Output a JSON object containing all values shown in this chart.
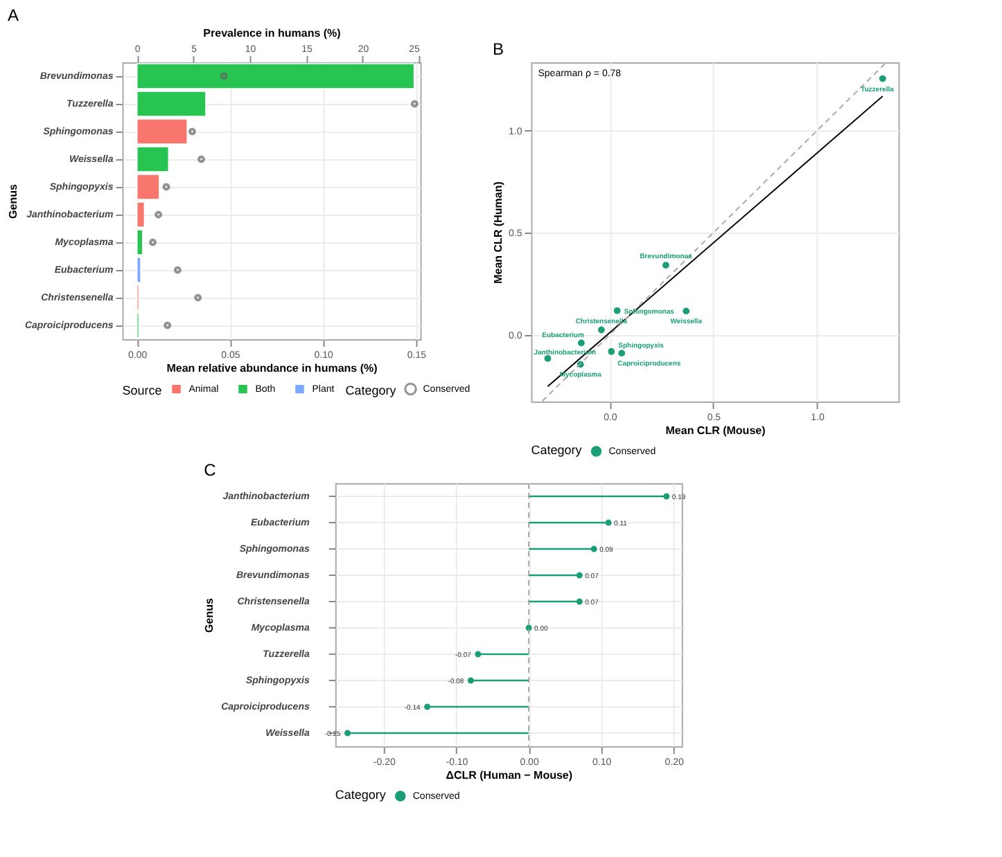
{
  "chart_data": [
    {
      "type": "bar",
      "title": "A",
      "orientation": "horizontal",
      "xlabel": "Mean relative abundance in humans (%)",
      "x2label": "Prevalence in humans (%)",
      "ylabel": "Genus",
      "legend_title": [
        "Category",
        "Source"
      ],
      "categories": [
        "Brevundimonas",
        "Tuzzerella",
        "Sphingomonas",
        "Weissella",
        "Sphingopyxis",
        "Janthinobacterium",
        "Mycoplasma",
        "Eubacterium",
        "Christensenella",
        "Caproiciproducens"
      ],
      "series": [
        {
          "name": "Animal",
          "color": "#f8766d",
          "values": [
            null,
            null,
            0.027,
            null,
            0.012,
            0.004,
            null,
            null,
            0.001,
            null
          ]
        },
        {
          "name": "Both",
          "color": "#28c452",
          "values": [
            0.149,
            0.037,
            null,
            0.017,
            null,
            null,
            0.003,
            null,
            null,
            0.001
          ]
        },
        {
          "name": "Plant",
          "color": "#7aa8ff",
          "values": [
            null,
            null,
            null,
            null,
            null,
            null,
            null,
            0.002,
            null,
            null
          ]
        },
        {
          "name": "Conserved",
          "type": "scatter",
          "axis": "x2",
          "marker": "circle",
          "color": "#666666",
          "values": [
            7.7,
            24.6,
            4.9,
            5.7,
            2.6,
            1.9,
            1.4,
            3.6,
            5.4,
            2.7
          ]
        }
      ],
      "xlim": [
        -0.0079,
        0.1523
      ],
      "xticks": [
        {
          "value": 0,
          "label": "0.00"
        },
        {
          "value": 0.05,
          "label": "0.05"
        },
        {
          "value": 0.1,
          "label": "0.10"
        },
        {
          "value": 0.15,
          "label": "0.15"
        }
      ],
      "x2lim": [
        -1.3,
        25.1
      ],
      "x2ticks": [
        0,
        5,
        10,
        15,
        20,
        25
      ],
      "grid": true,
      "legend": "bottom"
    },
    {
      "type": "scatter",
      "title": "B",
      "xlabel": "Mean CLR (Mouse)",
      "ylabel": "Mean CLR (Human)",
      "legend_title": "Category",
      "series": [
        {
          "name": "Conserved",
          "type": "scatter",
          "marker": "circle",
          "color": "#1b9e77",
          "x": [
            1.317,
            0.271,
            0.369,
            0.036,
            -0.04,
            -0.137,
            -0.299,
            -0.141,
            0.008,
            0.058
          ],
          "values": [
            1.255,
            0.341,
            0.116,
            0.118,
            0.024,
            -0.04,
            -0.116,
            -0.145,
            -0.082,
            -0.09
          ]
        },
        {
          "type": "line",
          "color": "#000000",
          "x": [
            -0.299,
            1.317
          ],
          "values": [
            -0.253,
            1.169
          ]
        },
        {
          "type": "line",
          "color": "#aaaaaa",
          "line_style": "dashed",
          "x": [
            -0.325,
            1.335
          ],
          "values": [
            -0.325,
            1.335
          ]
        }
      ],
      "annotations": [
        "Spearman ρ = 0.78",
        {
          "text": "Tuzzerella",
          "x": 1.317,
          "y": 1.255
        },
        {
          "text": "Brevundimonas",
          "x": 0.271,
          "y": 0.341
        },
        {
          "text": "Weissella",
          "x": 0.369,
          "y": 0.116
        },
        {
          "text": "Sphingomonas",
          "x": 0.036,
          "y": 0.118
        },
        {
          "text": "Christensenella",
          "x": -0.04,
          "y": 0.024
        },
        {
          "text": "Eubacterium",
          "x": -0.137,
          "y": -0.04
        },
        {
          "text": "Janthinobacterium",
          "x": -0.299,
          "y": -0.116
        },
        {
          "text": "Mycoplasma",
          "x": -0.141,
          "y": -0.145
        },
        {
          "text": "Sphingopyxis",
          "x": 0.008,
          "y": -0.082
        },
        {
          "text": "Caproiciproducens",
          "x": 0.058,
          "y": -0.09
        }
      ],
      "xlim": [
        -0.379,
        1.393
      ],
      "xticks": [
        {
          "value": 0,
          "label": "0.0"
        },
        {
          "value": 0.5,
          "label": "0.5"
        },
        {
          "value": 1,
          "label": "1.0"
        }
      ],
      "ylim": [
        -0.327,
        1.335
      ],
      "yticks": [
        {
          "value": 0,
          "label": "0.0"
        },
        {
          "value": 0.5,
          "label": "0.5"
        },
        {
          "value": 1,
          "label": "1.0"
        }
      ],
      "grid": true,
      "legend": "bottom"
    },
    {
      "type": "lollipop",
      "title": "C",
      "orientation": "horizontal",
      "xlabel": "ΔCLR (Human − Mouse)",
      "ylabel": "Genus",
      "legend_title": "Category",
      "categories": [
        "Janthinobacterium",
        "Eubacterium",
        "Sphingomonas",
        "Brevundimonas",
        "Christensenella",
        "Mycoplasma",
        "Tuzzerella",
        "Sphingopyxis",
        "Caproiciproducens",
        "Weissella"
      ],
      "series": [
        {
          "name": "Conserved",
          "color": "#1b9e77",
          "values": [
            0.19,
            0.11,
            0.09,
            0.07,
            0.07,
            0.0,
            -0.07,
            -0.08,
            -0.14,
            -0.25
          ],
          "value_labels": [
            "0.19",
            "0.11",
            "0.09",
            "0.07",
            "0.07",
            "0.00",
            "-0.07",
            "-0.08",
            "-0.14",
            "-0.25"
          ]
        }
      ],
      "ref_lines": [
        {
          "axis": "x",
          "value": 0,
          "color": "#999999",
          "line_style": "dashed"
        }
      ],
      "xlim": [
        -0.267,
        0.211
      ],
      "xticks": [
        {
          "value": -0.2,
          "label": "-0.20"
        },
        {
          "value": -0.1,
          "label": "-0.10"
        },
        {
          "value": 0,
          "label": "0.00"
        },
        {
          "value": 0.1,
          "label": "0.10"
        },
        {
          "value": 0.2,
          "label": "0.20"
        }
      ],
      "grid": true,
      "legend": "bottom",
      "marker": "circle"
    }
  ]
}
